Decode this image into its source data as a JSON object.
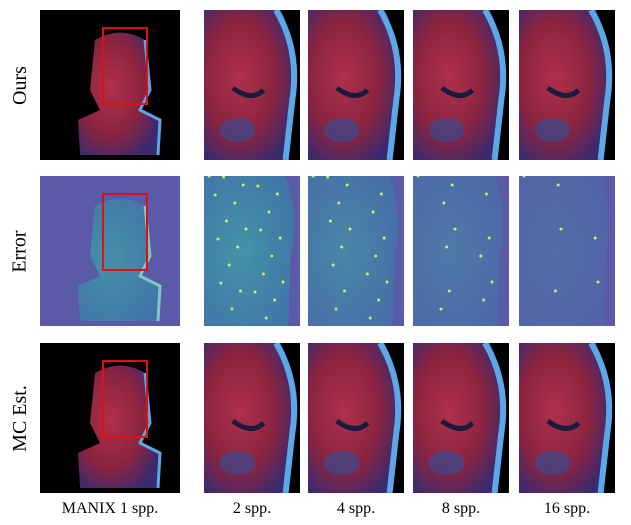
{
  "figure": {
    "row_labels": [
      "Ours",
      "Error",
      "MC Est."
    ],
    "column_labels": [
      "MANIX 1 spp.",
      "2 spp.",
      "4 spp.",
      "8 spp.",
      "16 spp."
    ]
  }
}
